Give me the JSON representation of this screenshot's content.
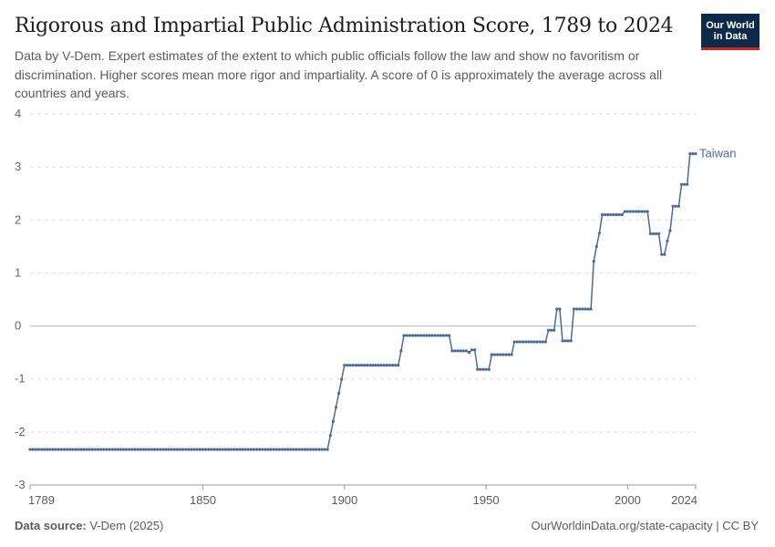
{
  "header": {
    "title": "Rigorous and Impartial Public Administration Score, 1789 to 2024",
    "subtitle": "Data by V-Dem. Expert estimates of the extent to which public officials follow the law and show no favoritism or discrimination. Higher scores mean more rigor and impartiality. A score of 0 is approximately the average across all countries and years."
  },
  "logo": {
    "line1": "Our World",
    "line2": "in Data",
    "bg": "#0e2a4a",
    "accent": "#ce261e"
  },
  "footer": {
    "source_label": "Data source:",
    "source_value": "V-Dem (2025)",
    "link": "OurWorldinData.org/state-capacity | CC BY"
  },
  "chart_data": {
    "type": "line",
    "ylim": [
      -3,
      4
    ],
    "yticks": [
      "4",
      "3",
      "2",
      "1",
      "0",
      "-1",
      "-2",
      "-3"
    ],
    "ytick_values": [
      4,
      3,
      2,
      1,
      0,
      -1,
      -2,
      -3
    ],
    "xlim": [
      1789,
      2024
    ],
    "xticks": [
      "1789",
      "1850",
      "1900",
      "1950",
      "2000",
      "2024"
    ],
    "xtick_values": [
      1789,
      1850,
      1900,
      1950,
      2000,
      2024
    ],
    "grid": true,
    "color": "#4c6a9c",
    "series": [
      {
        "name": "Taiwan",
        "points": [
          [
            1789,
            -2.33
          ],
          [
            1894,
            -2.33
          ],
          [
            1900,
            -0.74
          ],
          [
            1919,
            -0.74
          ],
          [
            1920,
            -0.47
          ],
          [
            1921,
            -0.18
          ],
          [
            1937,
            -0.18
          ],
          [
            1938,
            -0.47
          ],
          [
            1943,
            -0.47
          ],
          [
            1944,
            -0.5
          ],
          [
            1945,
            -0.45
          ],
          [
            1946,
            -0.45
          ],
          [
            1947,
            -0.82
          ],
          [
            1951,
            -0.82
          ],
          [
            1952,
            -0.54
          ],
          [
            1959,
            -0.54
          ],
          [
            1960,
            -0.3
          ],
          [
            1971,
            -0.3
          ],
          [
            1972,
            -0.08
          ],
          [
            1974,
            -0.08
          ],
          [
            1975,
            0.32
          ],
          [
            1976,
            0.32
          ],
          [
            1977,
            -0.28
          ],
          [
            1980,
            -0.28
          ],
          [
            1981,
            0.32
          ],
          [
            1987,
            0.32
          ],
          [
            1988,
            1.22
          ],
          [
            1989,
            1.5
          ],
          [
            1990,
            1.75
          ],
          [
            1991,
            2.1
          ],
          [
            1998,
            2.1
          ],
          [
            1999,
            2.16
          ],
          [
            2007,
            2.16
          ],
          [
            2008,
            1.74
          ],
          [
            2011,
            1.74
          ],
          [
            2012,
            1.35
          ],
          [
            2013,
            1.35
          ],
          [
            2014,
            1.6
          ],
          [
            2015,
            1.8
          ],
          [
            2016,
            2.26
          ],
          [
            2018,
            2.26
          ],
          [
            2019,
            2.67
          ],
          [
            2021,
            2.67
          ],
          [
            2022,
            3.25
          ],
          [
            2024,
            3.25
          ]
        ]
      }
    ]
  }
}
